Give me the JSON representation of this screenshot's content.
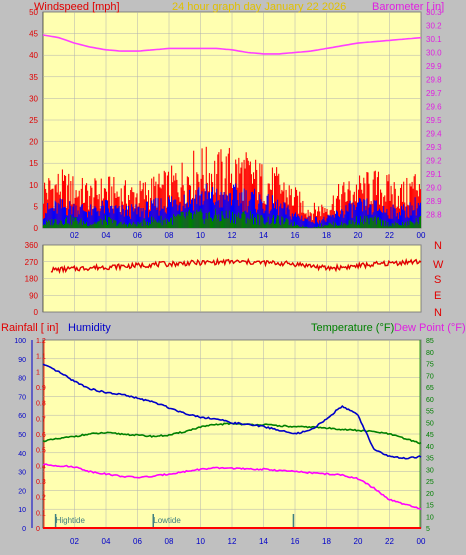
{
  "header": {
    "left_title": "Windspeed [mph]",
    "center_title": "24 hour graph day   January 22 2026",
    "right_title": "Barometer [ in]"
  },
  "lower_header": {
    "rain_label": "Rainfall [ in]",
    "humidity_label": "Humidity",
    "temp_label": "Temperature (°F)",
    "dew_label": "Dew Point (°F)"
  },
  "direction_labels": [
    "N",
    "W",
    "S",
    "E",
    "N"
  ],
  "tide_labels": {
    "high": "Hightide",
    "low": "Lowtide"
  },
  "colors": {
    "bg": "#c0c0c0",
    "plot_bg": "#ffffb0",
    "grid": "#b0b0b0",
    "wind_gust": "#ff0000",
    "wind_avg": "#0000ff",
    "wind_min": "#008000",
    "barometer": "#ff40ff",
    "direction": "#e00000",
    "humidity": "#0000c8",
    "temperature": "#008000",
    "dew_point": "#ff00ff",
    "rain": "#ff0000",
    "tide": "#408080"
  },
  "chart_data": [
    {
      "type": "area",
      "title": "24 hour graph day   January 22 2026",
      "ylabel": "Windspeed [mph]",
      "y2label": "Barometer [ in]",
      "x_ticks": [
        "02",
        "04",
        "06",
        "08",
        "10",
        "12",
        "14",
        "16",
        "18",
        "20",
        "22",
        "00"
      ],
      "ylim": [
        0,
        50
      ],
      "y_ticks": [
        0,
        5,
        10,
        15,
        20,
        25,
        30,
        35,
        40,
        45,
        50
      ],
      "y2lim": [
        28.7,
        30.3
      ],
      "y2_ticks": [
        "28.8",
        "28.9",
        "29.0",
        "29.1",
        "29.2",
        "29.3",
        "29.4",
        "29.5",
        "29.6",
        "29.7",
        "29.8",
        "29.9",
        "30.0",
        "30.1",
        "30.2",
        "30.3"
      ],
      "hours": [
        0,
        1,
        2,
        3,
        4,
        5,
        6,
        7,
        8,
        9,
        10,
        11,
        12,
        13,
        14,
        15,
        16,
        17,
        18,
        19,
        20,
        21,
        22,
        23,
        24
      ],
      "series": [
        {
          "name": "Windspeed gust",
          "axis": "left",
          "values": [
            9,
            10,
            9,
            8,
            9,
            8,
            8,
            9,
            10,
            12,
            14,
            13,
            14,
            13,
            11,
            10,
            7,
            4,
            5,
            8,
            9,
            10,
            9,
            8,
            12
          ]
        },
        {
          "name": "Windspeed average",
          "axis": "left",
          "values": [
            4,
            5,
            5,
            4,
            5,
            4,
            4,
            5,
            6,
            7,
            8,
            7,
            8,
            7,
            6,
            5,
            3,
            2,
            2,
            4,
            5,
            5,
            4,
            4,
            6
          ]
        },
        {
          "name": "Windspeed minimum",
          "axis": "left",
          "values": [
            1,
            2,
            2,
            1,
            2,
            1,
            1,
            2,
            2,
            3,
            3,
            3,
            3,
            3,
            2,
            2,
            1,
            0,
            1,
            1,
            2,
            2,
            1,
            1,
            2
          ]
        },
        {
          "name": "Barometer",
          "axis": "right",
          "values": [
            30.13,
            30.11,
            30.07,
            30.04,
            30.02,
            30.01,
            30.01,
            30.02,
            30.03,
            30.03,
            30.03,
            30.03,
            30.02,
            30.0,
            29.99,
            29.99,
            30.0,
            30.01,
            30.03,
            30.05,
            30.07,
            30.08,
            30.09,
            30.1,
            30.11
          ]
        }
      ]
    },
    {
      "type": "scatter",
      "ylim": [
        0,
        360
      ],
      "y_ticks": [
        0,
        90,
        180,
        270,
        360
      ],
      "series": [
        {
          "name": "Wind direction",
          "values": [
            225,
            228,
            232,
            238,
            242,
            245,
            250,
            255,
            258,
            262,
            265,
            268,
            270,
            268,
            265,
            262,
            258,
            248,
            235,
            240,
            248,
            255,
            262,
            268,
            270
          ]
        }
      ]
    },
    {
      "type": "line",
      "title": "",
      "x_ticks": [
        "02",
        "04",
        "06",
        "08",
        "10",
        "12",
        "14",
        "16",
        "18",
        "20",
        "22",
        "00"
      ],
      "left_axes": [
        {
          "label": "Rainfall [ in]",
          "lim": [
            0,
            1.2
          ],
          "ticks": [
            "0",
            "0.1",
            "0.2",
            "0.3",
            "0.4",
            "0.5",
            "0.6",
            "0.7",
            "0.8",
            "0.9",
            "1",
            "1.1",
            "1.2"
          ]
        },
        {
          "label": "Humidity",
          "lim": [
            0,
            100
          ],
          "ticks": [
            0,
            10,
            20,
            30,
            40,
            50,
            60,
            70,
            80,
            90,
            100
          ]
        }
      ],
      "right_axis": {
        "label": "Temperature (°F) / Dew Point (°F)",
        "lim": [
          5,
          85
        ],
        "ticks": [
          5,
          10,
          15,
          20,
          25,
          30,
          35,
          40,
          45,
          50,
          55,
          60,
          65,
          70,
          75,
          80,
          85
        ]
      },
      "hours": [
        0,
        1,
        2,
        3,
        4,
        5,
        6,
        7,
        8,
        9,
        10,
        11,
        12,
        13,
        14,
        15,
        16,
        17,
        18,
        19,
        20,
        21,
        22,
        23,
        24
      ],
      "series": [
        {
          "name": "Humidity",
          "axis": "humidity",
          "values": [
            87,
            83,
            78,
            74,
            72,
            71,
            69,
            67,
            64,
            61,
            59,
            58,
            56,
            55,
            54,
            52,
            50,
            52,
            58,
            65,
            60,
            42,
            38,
            37,
            38
          ]
        },
        {
          "name": "Temperature",
          "axis": "right",
          "values": [
            42,
            43,
            44,
            45,
            45.5,
            45,
            44.5,
            44,
            44.5,
            46,
            48,
            49,
            49.5,
            49,
            49,
            48.5,
            48,
            48,
            47.5,
            47,
            46.5,
            46,
            45,
            43,
            41
          ]
        },
        {
          "name": "Dew Point",
          "axis": "right",
          "values": [
            32,
            31.5,
            31,
            29,
            28,
            27,
            26.5,
            27,
            28,
            29,
            30,
            30.5,
            30.5,
            30,
            30,
            29.5,
            29,
            28.5,
            28,
            27.5,
            26,
            22,
            17,
            15,
            13
          ]
        },
        {
          "name": "Rainfall",
          "axis": "rain",
          "values": [
            0,
            0,
            0,
            0,
            0,
            0,
            0,
            0,
            0,
            0,
            0,
            0,
            0,
            0,
            0,
            0,
            0,
            0,
            0,
            0,
            0,
            0,
            0,
            0,
            0
          ]
        }
      ],
      "tides": [
        {
          "label": "Hightide",
          "hour": 0.8
        },
        {
          "label": "Lowtide",
          "hour": 7.0
        },
        {
          "label": "",
          "hour": 15.9
        }
      ]
    }
  ]
}
